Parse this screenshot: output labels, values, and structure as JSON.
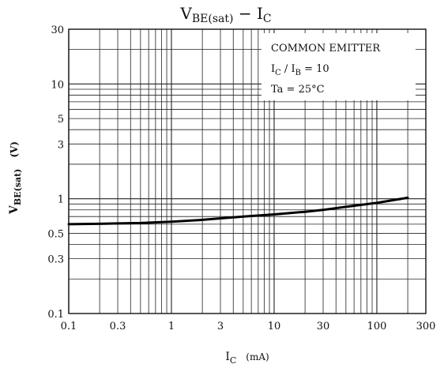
{
  "chart_data": {
    "type": "line",
    "title": {
      "main": "V",
      "main_sub": "BE(sat)",
      "sep": " − ",
      "second": "I",
      "second_sub": "C"
    },
    "xlabel": {
      "main": "I",
      "sub": "C",
      "unit": "(mA)"
    },
    "ylabel": {
      "main": "V",
      "sub": "BE(sat)",
      "unit": "(V)"
    },
    "xscale": "log",
    "yscale": "log",
    "xlim": [
      0.1,
      300
    ],
    "ylim": [
      0.1,
      30
    ],
    "xticks": [
      {
        "value": 0.1,
        "label": "0.1"
      },
      {
        "value": 0.3,
        "label": "0.3"
      },
      {
        "value": 1,
        "label": "1"
      },
      {
        "value": 3,
        "label": "3"
      },
      {
        "value": 10,
        "label": "10"
      },
      {
        "value": 30,
        "label": "30"
      },
      {
        "value": 100,
        "label": "100"
      },
      {
        "value": 300,
        "label": "300"
      }
    ],
    "yticks": [
      {
        "value": 0.1,
        "label": "0.1"
      },
      {
        "value": 0.3,
        "label": "0.3"
      },
      {
        "value": 0.5,
        "label": "0.5"
      },
      {
        "value": 1,
        "label": "1"
      },
      {
        "value": 3,
        "label": "3"
      },
      {
        "value": 5,
        "label": "5"
      },
      {
        "value": 10,
        "label": "10"
      },
      {
        "value": 30,
        "label": "30"
      }
    ],
    "grid": true,
    "annotations": {
      "line1": "COMMON EMITTER",
      "line2_main": "I",
      "line2_sub1": "C",
      "line2_mid": " / I",
      "line2_sub2": "B",
      "line2_tail": " = 10",
      "line3": "Ta = 25°C"
    },
    "series": [
      {
        "x": [
          0.1,
          0.2,
          0.3,
          0.5,
          1,
          2,
          3,
          5,
          10,
          20,
          30,
          50,
          100,
          200
        ],
        "y": [
          0.6,
          0.605,
          0.61,
          0.615,
          0.63,
          0.655,
          0.675,
          0.7,
          0.73,
          0.77,
          0.8,
          0.85,
          0.92,
          1.02
        ]
      }
    ]
  }
}
